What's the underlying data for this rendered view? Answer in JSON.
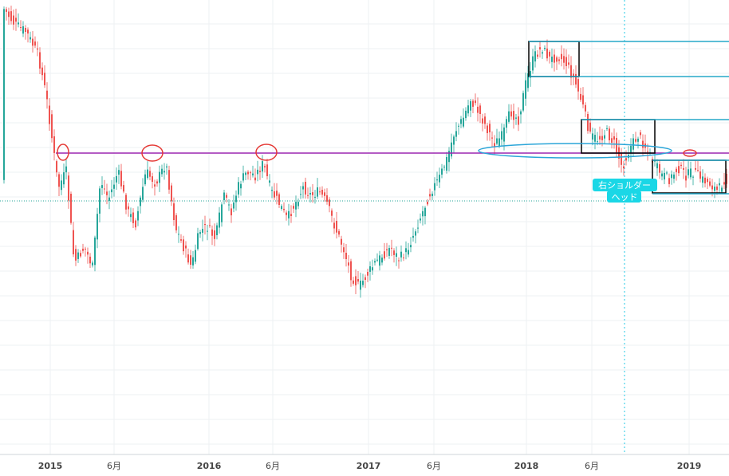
{
  "chart_data": {
    "type": "candlestick",
    "x_axis": {
      "ticks": [
        {
          "label": "2015",
          "year": true
        },
        {
          "label": "6月",
          "year": false
        },
        {
          "label": "2016",
          "year": true
        },
        {
          "label": "6月",
          "year": false
        },
        {
          "label": "2017",
          "year": true
        },
        {
          "label": "6月",
          "year": false
        },
        {
          "label": "2018",
          "year": true
        },
        {
          "label": "6月",
          "year": false
        },
        {
          "label": "2019",
          "year": true
        }
      ]
    },
    "grid": true,
    "colors": {
      "up": "#26a69a",
      "down": "#ef5350",
      "support_line": "#9c27b0",
      "zone": "#26a8c9",
      "marker": "#e53935",
      "ellipse": "#2aa5d8",
      "badge": "#1ad7e6",
      "grid": "#eef1f3",
      "axis_text": "#444444"
    },
    "annotations": {
      "badge_lines": [
        "右ショルダー",
        "ヘッド"
      ]
    }
  }
}
